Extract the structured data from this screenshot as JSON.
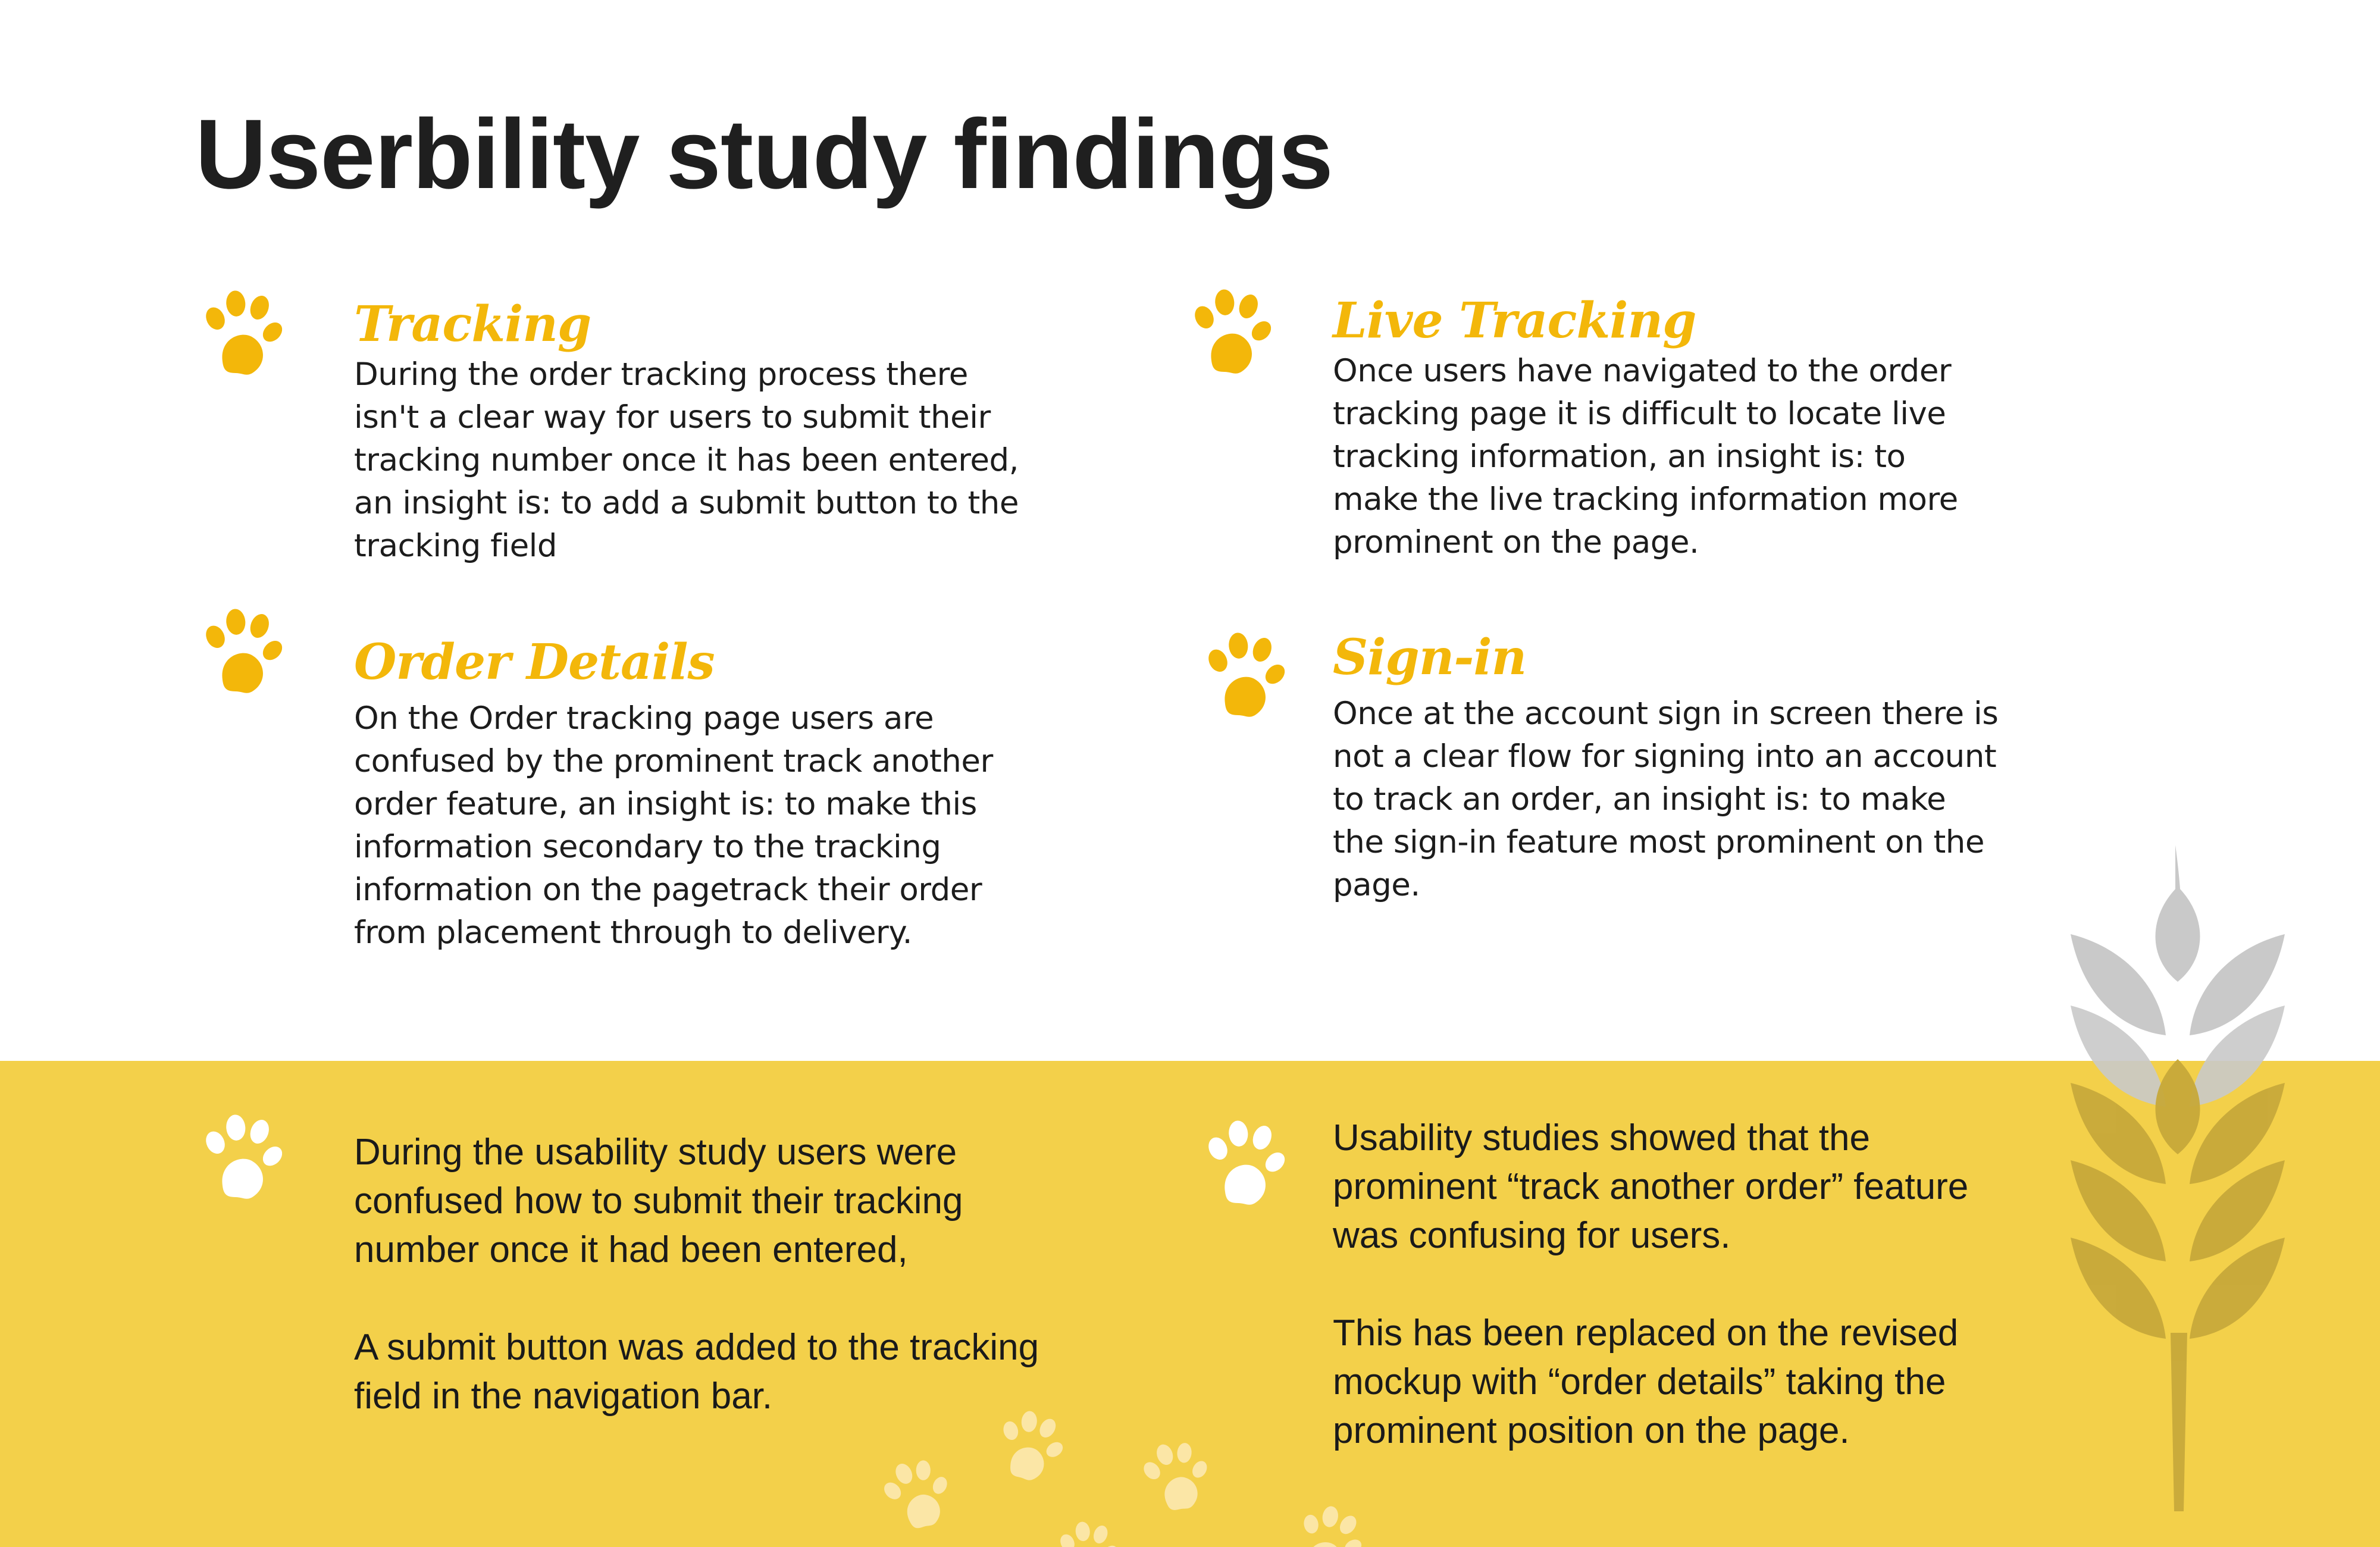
{
  "title": "Userbility study findings",
  "colors": {
    "accent": "#f3b70a",
    "band": "#f3d04a",
    "text": "#1c1c1c",
    "paw_on_band": "#ffffff"
  },
  "icons": {
    "paw": "paw-icon",
    "wheat": "wheat-icon"
  },
  "findings": [
    {
      "heading": "Tracking",
      "body": "During the order tracking process there isn't a clear way for users to submit their tracking number once it has been entered, an insight is: to add a submit button to the tracking field"
    },
    {
      "heading": "Live Tracking",
      "body": "Once users have navigated to the order tracking page it is difficult to locate live tracking information, an insight is: to make the live tracking information more prominent on the page."
    },
    {
      "heading": "Order Details",
      "body": "On the Order tracking page users are confused by the prominent track another order feature, an insight is: to make this information secondary to the tracking information on the pagetrack their order from placement through to delivery."
    },
    {
      "heading": "Sign-in",
      "body": "Once at the account sign in screen there is not a clear flow for signing into an account to track an order, an insight is: to make the sign-in feature most prominent on the page."
    }
  ],
  "insights": [
    {
      "para1": "During the usability study users were confused how to submit their tracking number once it had been entered,",
      "para2": "A submit button was added to the tracking field in the navigation bar."
    },
    {
      "para1": "Usability studies showed that the prominent “track another order” feature was confusing for users.",
      "para2": "This has been replaced on the revised mockup with “order details” taking the prominent position on the page."
    }
  ]
}
